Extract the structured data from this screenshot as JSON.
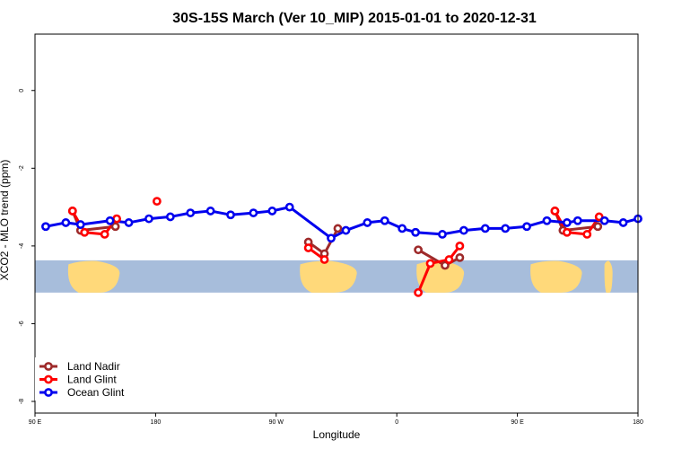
{
  "chart_data": {
    "type": "line",
    "title": "30S-15S March (Ver 10_MIP)   2015-01-01 to 2020-12-31",
    "xlabel": "Longitude",
    "ylabel": "XCO2 - MLO trend (ppm)",
    "x_ticks": [
      {
        "value": 90,
        "label": "90 E"
      },
      {
        "value": 180,
        "label": "180"
      },
      {
        "value": 270,
        "label": "90 W"
      },
      {
        "value": 360,
        "label": "0"
      },
      {
        "value": 450,
        "label": "90 E"
      },
      {
        "value": 540,
        "label": "180"
      }
    ],
    "y_ticks": [
      {
        "value": -8,
        "label": "-8"
      },
      {
        "value": -6,
        "label": "-6"
      },
      {
        "value": -4,
        "label": "-4"
      },
      {
        "value": -2,
        "label": "-2"
      },
      {
        "value": 0,
        "label": "0"
      }
    ],
    "xlim": [
      90,
      540
    ],
    "ylim": [
      -8.3,
      1.45
    ],
    "grid": false,
    "legend_position": "bottom-left",
    "background_map": {
      "latitude_band": "30S-15S",
      "y_range": [
        -5.2,
        -4.37
      ],
      "ocean_color": "#a7bddb",
      "land_color": "#ffd97a",
      "land_extents_lon": [
        [
          115,
          153
        ],
        [
          288,
          330
        ],
        [
          375,
          410
        ],
        [
          460,
          498
        ],
        [
          515,
          521
        ],
        [
          610,
          648
        ]
      ]
    },
    "series": [
      {
        "name": "Land Nadir",
        "color": "#9e2a2a",
        "segments": [
          {
            "x": [
              118,
              124,
              150
            ],
            "y": [
              -3.1,
              -3.6,
              -3.5
            ]
          },
          {
            "x": [
              294,
              306,
              316
            ],
            "y": [
              -3.9,
              -4.2,
              -3.55
            ]
          },
          {
            "x": [
              376,
              396,
              407
            ],
            "y": [
              -4.1,
              -4.5,
              -4.3
            ]
          },
          {
            "x": [
              478,
              484,
              510
            ],
            "y": [
              -3.1,
              -3.6,
              -3.5
            ]
          }
        ]
      },
      {
        "name": "Land Glint",
        "color": "#ff0000",
        "segments": [
          {
            "x": [
              118,
              127,
              142,
              151
            ],
            "y": [
              -3.1,
              -3.65,
              -3.7,
              -3.3
            ]
          },
          {
            "x": [
              181
            ],
            "y": [
              -2.85
            ]
          },
          {
            "x": [
              294,
              306
            ],
            "y": [
              -4.05,
              -4.35
            ]
          },
          {
            "x": [
              376,
              385,
              399,
              407
            ],
            "y": [
              -5.2,
              -4.45,
              -4.35,
              -4.0
            ]
          },
          {
            "x": [
              478,
              487,
              502,
              511
            ],
            "y": [
              -3.1,
              -3.65,
              -3.7,
              -3.25
            ]
          }
        ]
      },
      {
        "name": "Ocean Glint",
        "color": "#0000ee",
        "segments": [
          {
            "x": [
              98,
              113,
              124,
              146,
              160,
              175,
              191,
              206,
              221,
              236,
              253,
              267,
              280,
              311,
              322,
              338,
              351,
              364,
              374,
              394,
              410,
              426,
              441,
              457,
              472,
              487,
              495,
              515,
              529,
              540
            ],
            "y": [
              -3.5,
              -3.4,
              -3.45,
              -3.35,
              -3.4,
              -3.3,
              -3.25,
              -3.15,
              -3.1,
              -3.2,
              -3.15,
              -3.1,
              -3.0,
              -3.8,
              -3.6,
              -3.4,
              -3.35,
              -3.55,
              -3.65,
              -3.7,
              -3.6,
              -3.55,
              -3.55,
              -3.5,
              -3.35,
              -3.4,
              -3.35,
              -3.35,
              -3.4,
              -3.3
            ]
          }
        ]
      }
    ]
  }
}
